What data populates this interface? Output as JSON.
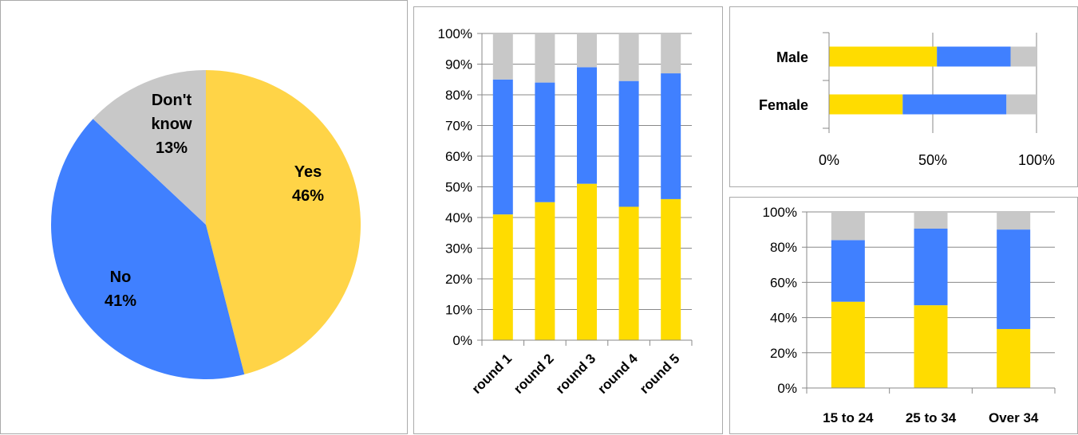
{
  "colors": {
    "yes": "#FFD447",
    "no": "#4080FF",
    "dont_know": "#C8C8C8",
    "bar_yes": "#FFDC00",
    "bar_no": "#4080FF",
    "bar_dont_know": "#C8C8C8",
    "axis": "#888888",
    "grid": "#888888"
  },
  "chart_data": [
    {
      "type": "pie",
      "title": "",
      "slices": [
        {
          "label_line1": "Yes",
          "label_line2": "",
          "pct_label": "46%",
          "value": 46,
          "color_key": "yes"
        },
        {
          "label_line1": "No",
          "label_line2": "",
          "pct_label": "41%",
          "value": 41,
          "color_key": "no"
        },
        {
          "label_line1": "Don't",
          "label_line2": "know",
          "pct_label": "13%",
          "value": 13,
          "color_key": "dont_know"
        }
      ]
    },
    {
      "type": "bar",
      "stacked": true,
      "orientation": "vertical",
      "categories": [
        "round 1",
        "round 2",
        "round 3",
        "round 4",
        "round 5"
      ],
      "series": [
        {
          "key": "yes",
          "values": [
            41,
            45,
            51,
            43.5,
            46
          ]
        },
        {
          "key": "no",
          "values": [
            44,
            39,
            38,
            41,
            41
          ]
        },
        {
          "key": "dont_know",
          "values": [
            15,
            16,
            11,
            15.5,
            13
          ]
        }
      ],
      "yticks": [
        "0%",
        "10%",
        "20%",
        "30%",
        "40%",
        "50%",
        "60%",
        "70%",
        "80%",
        "90%",
        "100%"
      ],
      "ylim": [
        0,
        100
      ],
      "grid": true
    },
    {
      "type": "bar",
      "stacked": true,
      "orientation": "horizontal",
      "categories": [
        "Male",
        "Female"
      ],
      "series": [
        {
          "key": "yes",
          "values": [
            52,
            35.5
          ]
        },
        {
          "key": "no",
          "values": [
            35.5,
            50
          ]
        },
        {
          "key": "dont_know",
          "values": [
            12.5,
            14.5
          ]
        }
      ],
      "xticks": [
        "0%",
        "50%",
        "100%"
      ],
      "xlim": [
        0,
        100
      ],
      "grid": true
    },
    {
      "type": "bar",
      "stacked": true,
      "orientation": "vertical",
      "categories": [
        "15 to 24",
        "25 to 34",
        "Over 34"
      ],
      "series": [
        {
          "key": "yes",
          "values": [
            49,
            47,
            33.5
          ]
        },
        {
          "key": "no",
          "values": [
            35,
            43.5,
            56.5
          ]
        },
        {
          "key": "dont_know",
          "values": [
            16,
            9.5,
            10
          ]
        }
      ],
      "yticks": [
        "0%",
        "20%",
        "40%",
        "60%",
        "80%",
        "100%"
      ],
      "ylim": [
        0,
        100
      ],
      "grid": true
    }
  ]
}
